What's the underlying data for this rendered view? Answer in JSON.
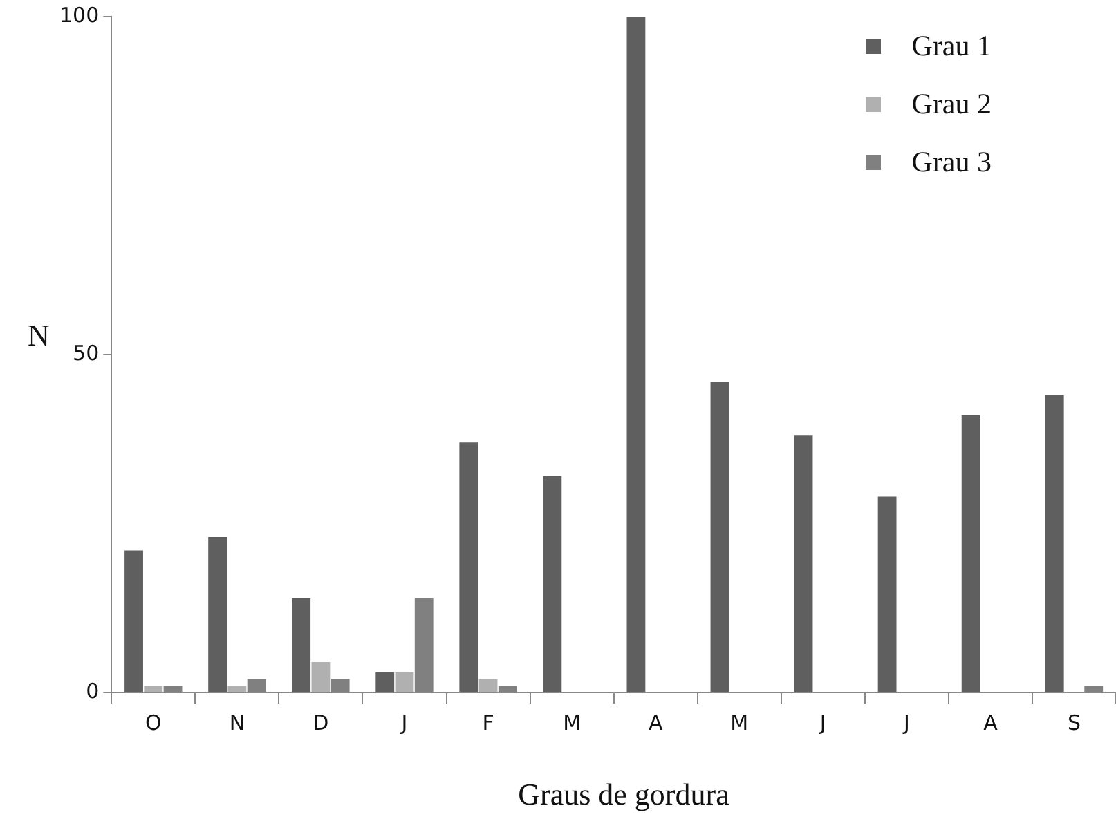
{
  "chart_data": {
    "type": "bar",
    "xlabel": "Graus de gordura",
    "ylabel": "N",
    "categories": [
      "O",
      "N",
      "D",
      "J",
      "F",
      "M",
      "A",
      "M",
      "J",
      "J",
      "A",
      "S"
    ],
    "series": [
      {
        "name": "Grau 1",
        "color": "#5f5f5f",
        "values": [
          21,
          23,
          14,
          3,
          37,
          32,
          100,
          46,
          38,
          29,
          41,
          44
        ]
      },
      {
        "name": "Grau 2",
        "color": "#b0b0b0",
        "values": [
          1,
          1,
          4.5,
          3,
          2,
          0,
          0,
          0,
          0,
          0,
          0,
          0
        ]
      },
      {
        "name": "Grau 3",
        "color": "#808080",
        "values": [
          1,
          2,
          2,
          14,
          1,
          0,
          0,
          0,
          0,
          0,
          0,
          1
        ]
      }
    ],
    "ylim": [
      0,
      100
    ],
    "yticks": [
      0,
      50,
      100
    ],
    "grid": false,
    "legend": "top right"
  }
}
